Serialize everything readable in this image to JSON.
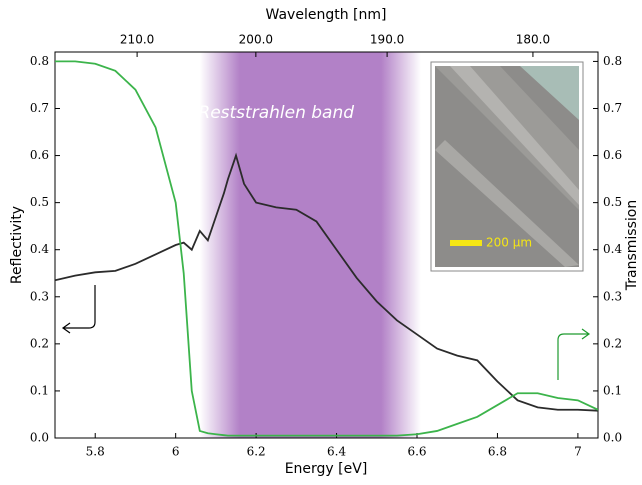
{
  "chart_data": {
    "type": "line",
    "xlabel": "Energy [eV]",
    "ylabel": "Reflectivity",
    "y2label": "Transmission",
    "x2label": "Wavelength [nm]",
    "annotation": "Reststrahlen band",
    "inset_label": "200 μm",
    "shaded_region": [
      6.06,
      6.61
    ],
    "xlim": [
      5.7,
      7.05
    ],
    "xticks": [
      5.8,
      6.0,
      6.2,
      6.4,
      6.6,
      6.8,
      7.0
    ],
    "x2scale": "reciprocal",
    "x2lim": [
      217.52,
      175.87
    ],
    "x2ticks": [
      {
        "value": 210,
        "label": "210.0"
      },
      {
        "value": 200,
        "label": "200.0"
      },
      {
        "value": 190,
        "label": "190.0"
      },
      {
        "value": 180,
        "label": "180.0"
      }
    ],
    "ylim": [
      0,
      0.82
    ],
    "yticks": [
      {
        "value": 0,
        "label": "0.0"
      },
      0.1,
      0.2,
      0.3,
      0.4,
      0.5,
      0.6,
      0.7,
      0.8
    ],
    "y2lim": [
      0,
      0.82
    ],
    "y2ticks": [
      {
        "value": 0,
        "label": "0.0"
      },
      0.1,
      0.2,
      0.3,
      0.4,
      0.5,
      0.6,
      0.7,
      0.8
    ],
    "x": [
      5.7,
      5.75,
      5.8,
      5.85,
      5.9,
      5.95,
      6.0,
      6.02,
      6.04,
      6.06,
      6.08,
      6.1,
      6.12,
      6.13,
      6.15,
      6.17,
      6.2,
      6.25,
      6.3,
      6.35,
      6.4,
      6.45,
      6.5,
      6.55,
      6.6,
      6.65,
      6.7,
      6.75,
      6.8,
      6.85,
      6.9,
      6.95,
      7.0,
      7.05
    ],
    "series": [
      {
        "color": "#2b2b2b",
        "values": [
          0.335,
          0.345,
          0.352,
          0.355,
          0.37,
          0.39,
          0.41,
          0.415,
          0.4,
          0.44,
          0.42,
          0.47,
          0.52,
          0.55,
          0.6,
          0.54,
          0.5,
          0.49,
          0.485,
          0.46,
          0.4,
          0.34,
          0.29,
          0.25,
          0.22,
          0.19,
          0.175,
          0.165,
          0.12,
          0.08,
          0.065,
          0.06,
          0.06,
          0.058
        ]
      },
      {
        "color": "#3cb44b",
        "axis": "y2",
        "values": [
          0.8,
          0.8,
          0.795,
          0.78,
          0.74,
          0.66,
          0.5,
          0.35,
          0.1,
          0.015,
          0.01,
          0.008,
          0.006,
          0.005,
          0.005,
          0.005,
          0.005,
          0.005,
          0.005,
          0.005,
          0.005,
          0.005,
          0.005,
          0.005,
          0.008,
          0.015,
          0.03,
          0.045,
          0.07,
          0.095,
          0.095,
          0.085,
          0.08,
          0.06
        ]
      }
    ]
  }
}
